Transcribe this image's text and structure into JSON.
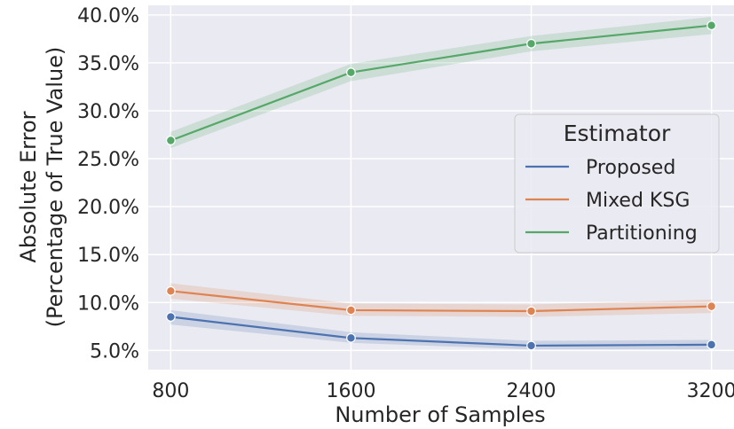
{
  "chart_data": {
    "type": "line",
    "x": [
      800,
      1600,
      2400,
      3200
    ],
    "xticks": [
      "800",
      "1600",
      "2400",
      "3200"
    ],
    "yticks": [
      "5.0%",
      "10.0%",
      "15.0%",
      "20.0%",
      "25.0%",
      "30.0%",
      "35.0%",
      "40.0%"
    ],
    "ytick_values": [
      5,
      10,
      15,
      20,
      25,
      30,
      35,
      40
    ],
    "xlabel": "Number of Samples",
    "ylabel_line1": "Absolute Error",
    "ylabel_line2": "(Percentage of True Value)",
    "xlim": [
      700,
      3300
    ],
    "ylim": [
      3.0,
      41.0
    ],
    "grid": true,
    "legend": {
      "title": "Estimator",
      "placement": "center-right"
    },
    "series": [
      {
        "name": "Proposed",
        "color": "#4c72b0",
        "values": [
          8.5,
          6.3,
          5.5,
          5.6
        ],
        "ci_low": [
          7.7,
          5.8,
          5.1,
          5.1
        ],
        "ci_high": [
          9.2,
          6.9,
          6.0,
          6.1
        ]
      },
      {
        "name": "Mixed KSG",
        "color": "#dd8452",
        "values": [
          11.2,
          9.2,
          9.1,
          9.6
        ],
        "ci_low": [
          10.4,
          8.6,
          8.5,
          8.9
        ],
        "ci_high": [
          12.0,
          9.9,
          9.8,
          10.3
        ]
      },
      {
        "name": "Partitioning",
        "color": "#55a868",
        "values": [
          26.9,
          34.0,
          37.0,
          38.9
        ],
        "ci_low": [
          26.1,
          33.1,
          36.2,
          38.0
        ],
        "ci_high": [
          27.8,
          34.9,
          37.8,
          39.8
        ]
      }
    ]
  }
}
